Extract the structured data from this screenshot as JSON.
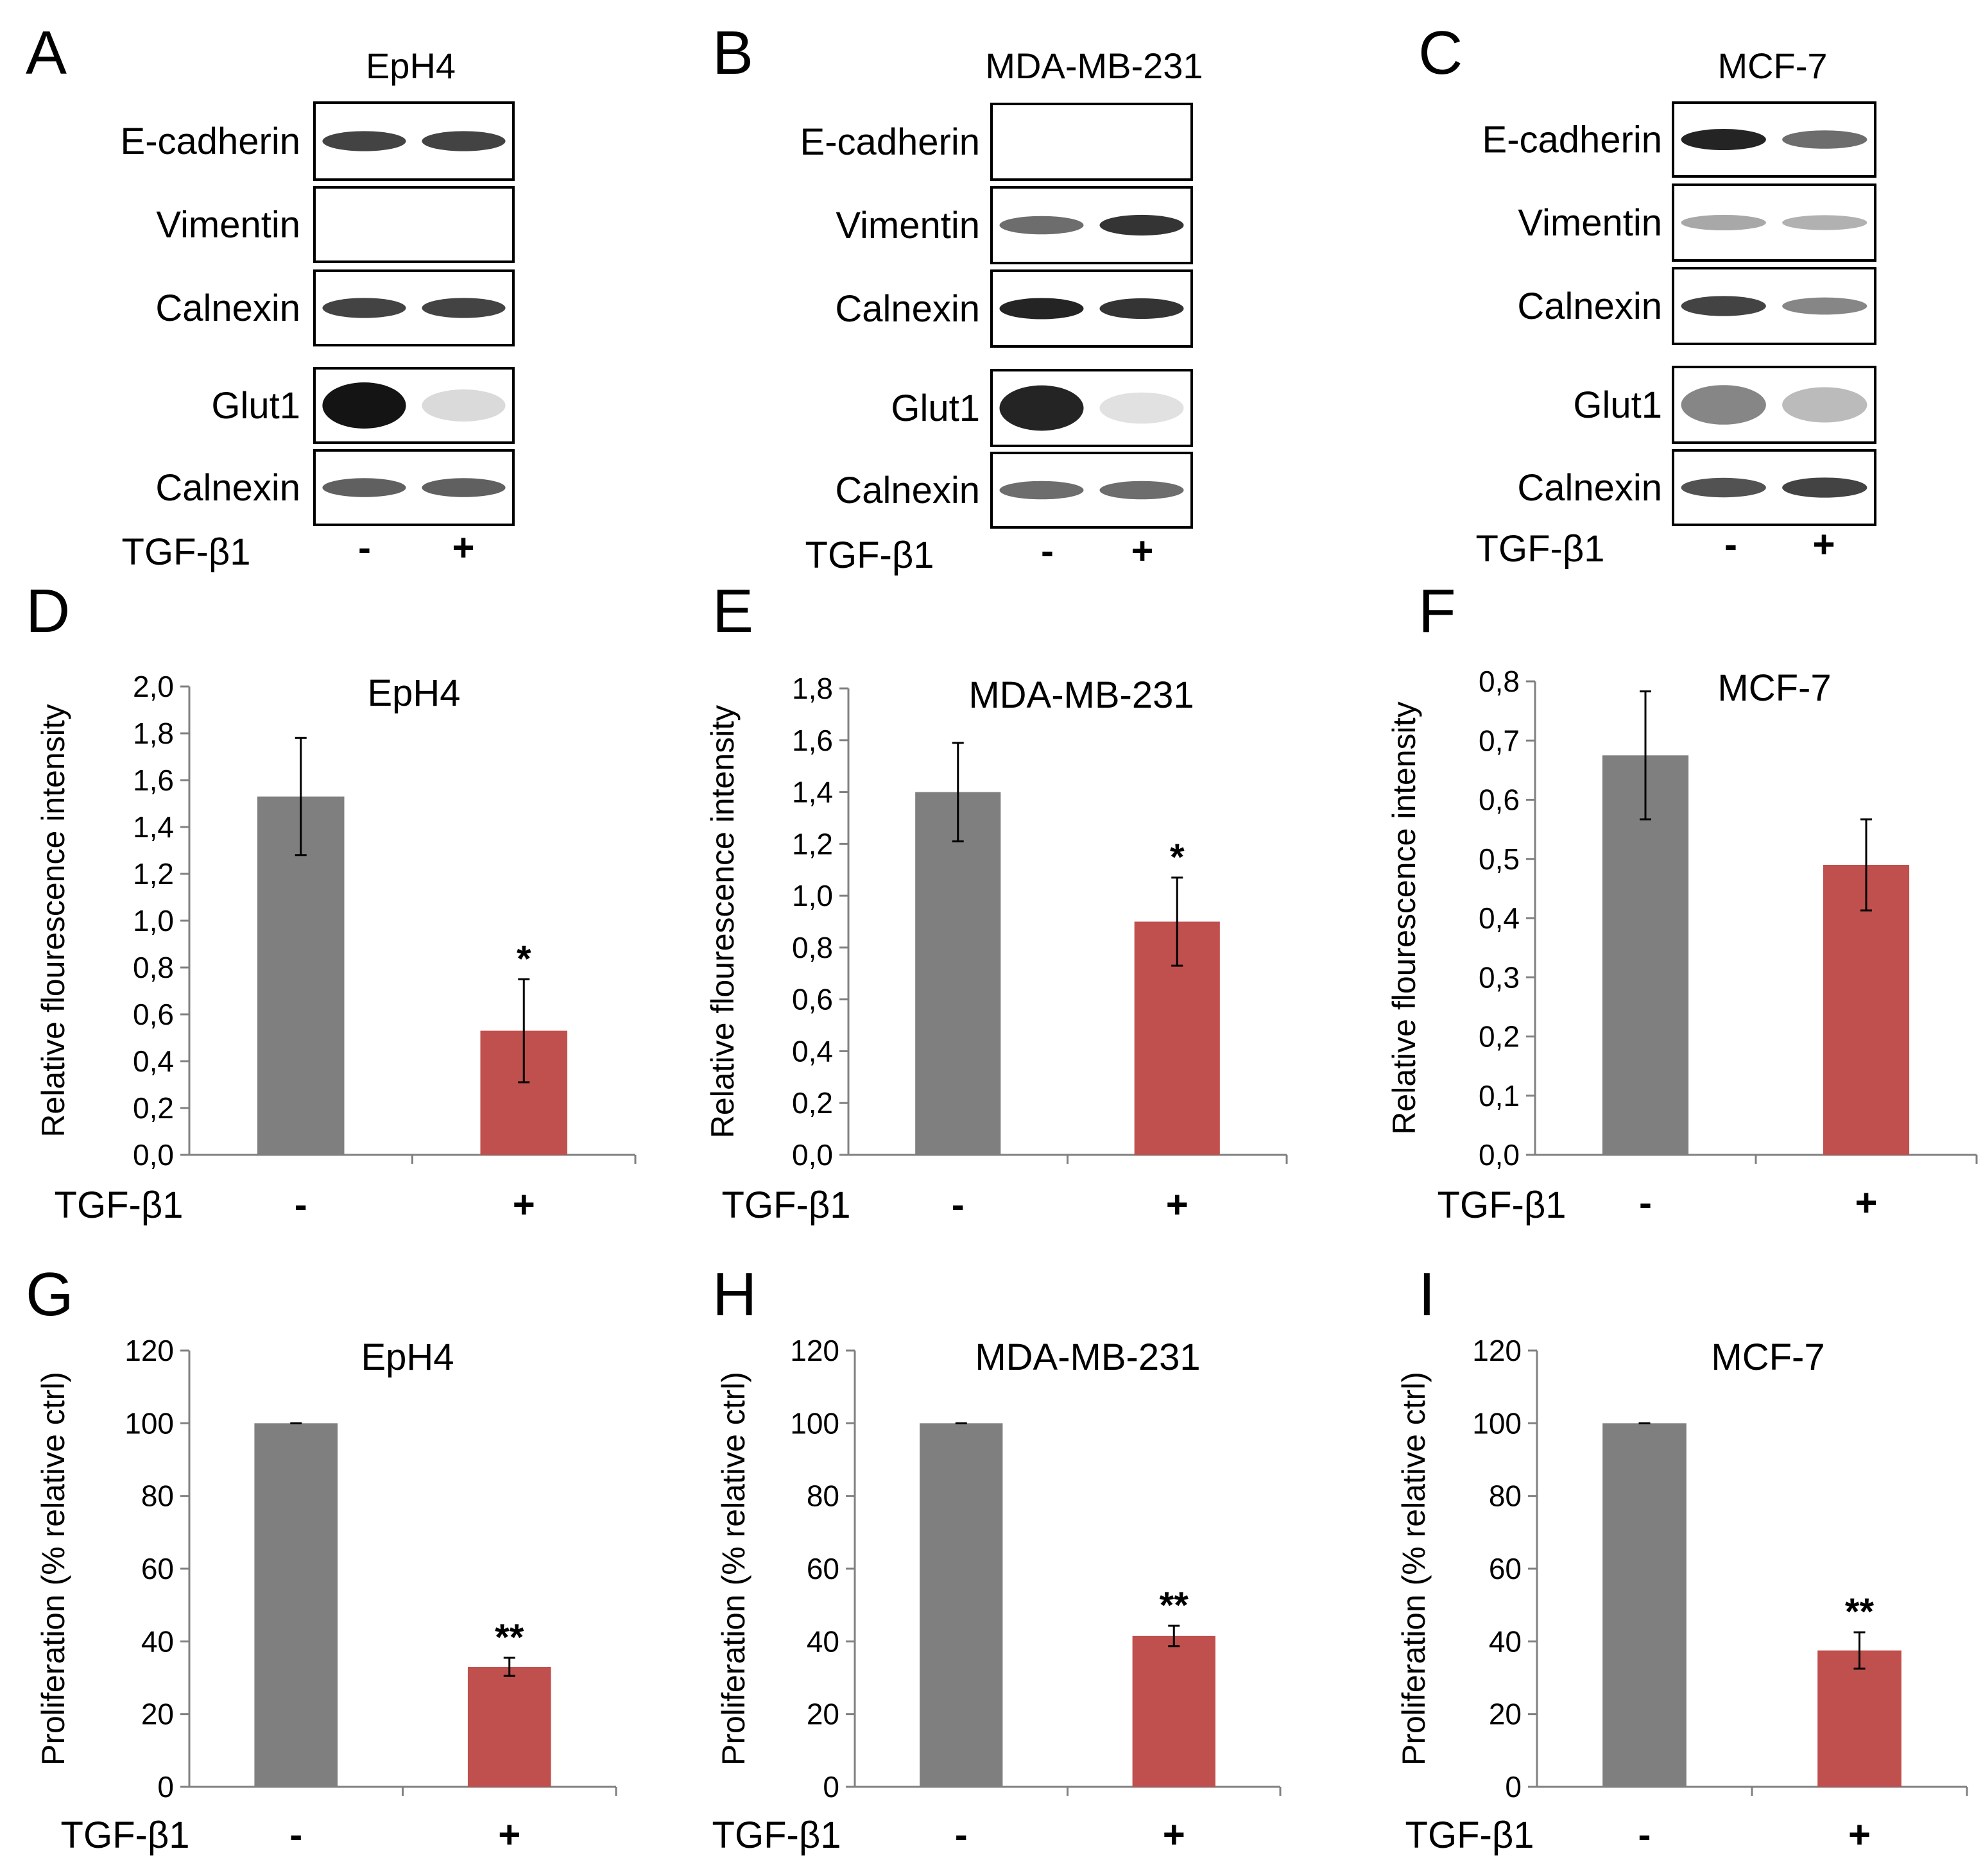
{
  "figure": {
    "colors": {
      "control": "#7f7f7f",
      "treated": "#c0504d",
      "text": "#000000"
    },
    "treatment_label": "TGF-β1",
    "conditions": [
      "-",
      "+"
    ],
    "blot_panels": [
      {
        "letter": "A",
        "cell_line": "EpH4",
        "strips": [
          {
            "protein": "E-cadherin",
            "band_intensity": [
              0.85,
              0.85
            ]
          },
          {
            "protein": "Vimentin",
            "band_intensity": [
              0,
              0
            ]
          },
          {
            "protein": "Calnexin",
            "band_intensity": [
              0.85,
              0.85
            ]
          },
          {
            "protein": "Glut1",
            "band_intensity": [
              1.0,
              0.15
            ]
          },
          {
            "protein": "Calnexin",
            "band_intensity": [
              0.75,
              0.75
            ]
          }
        ]
      },
      {
        "letter": "B",
        "cell_line": "MDA-MB-231",
        "strips": [
          {
            "protein": "E-cadherin",
            "band_intensity": [
              0,
              0
            ]
          },
          {
            "protein": "Vimentin",
            "band_intensity": [
              0.7,
              0.9
            ]
          },
          {
            "protein": "Calnexin",
            "band_intensity": [
              0.95,
              0.9
            ]
          },
          {
            "protein": "Glut1",
            "band_intensity": [
              0.95,
              0.1
            ]
          },
          {
            "protein": "Calnexin",
            "band_intensity": [
              0.7,
              0.7
            ]
          }
        ]
      },
      {
        "letter": "C",
        "cell_line": "MCF-7",
        "strips": [
          {
            "protein": "E-cadherin",
            "band_intensity": [
              0.95,
              0.7
            ]
          },
          {
            "protein": "Vimentin",
            "band_intensity": [
              0.45,
              0.4
            ]
          },
          {
            "protein": "Calnexin",
            "band_intensity": [
              0.85,
              0.6
            ]
          },
          {
            "protein": "Glut1",
            "band_intensity": [
              0.6,
              0.35
            ]
          },
          {
            "protein": "Calnexin",
            "band_intensity": [
              0.8,
              0.85
            ]
          }
        ]
      }
    ]
  },
  "chart_data": [
    {
      "letter": "D",
      "type": "bar",
      "title": "EpH4",
      "ylabel": "Relative flourescence intensity",
      "categories": [
        "-",
        "+"
      ],
      "values": [
        1.53,
        0.53
      ],
      "errors": [
        0.25,
        0.22
      ],
      "significance": [
        "",
        "*"
      ],
      "ylim": [
        0,
        2.0
      ],
      "step": 0.2,
      "decimals": 1,
      "tick_labels": [
        "0,0",
        "0,2",
        "0,4",
        "0,6",
        "0,8",
        "1,0",
        "1,2",
        "1,4",
        "1,6",
        "1,8",
        "2,0"
      ]
    },
    {
      "letter": "E",
      "type": "bar",
      "title": "MDA-MB-231",
      "ylabel": "Relative flourescence intensity",
      "categories": [
        "-",
        "+"
      ],
      "values": [
        1.4,
        0.9
      ],
      "errors": [
        0.19,
        0.17
      ],
      "significance": [
        "",
        "*"
      ],
      "ylim": [
        0,
        1.8
      ],
      "step": 0.2,
      "decimals": 1,
      "tick_labels": [
        "0,0",
        "0,2",
        "0,4",
        "0,6",
        "0,8",
        "1,0",
        "1,2",
        "1,4",
        "1,6",
        "1,8"
      ]
    },
    {
      "letter": "F",
      "type": "bar",
      "title": "MCF-7",
      "ylabel": "Relative flourescence intensity",
      "categories": [
        "-",
        "+"
      ],
      "values": [
        0.675,
        0.49
      ],
      "errors": [
        0.108,
        0.077
      ],
      "significance": [
        "",
        ""
      ],
      "ylim": [
        0,
        0.8
      ],
      "step": 0.1,
      "decimals": 1,
      "tick_labels": [
        "0,0",
        "0,1",
        "0,2",
        "0,3",
        "0,4",
        "0,5",
        "0,6",
        "0,7",
        "0,8"
      ]
    },
    {
      "letter": "G",
      "type": "bar",
      "title": "EpH4",
      "ylabel": "Proliferation (% relative ctrl)",
      "categories": [
        "-",
        "+"
      ],
      "values": [
        100,
        33
      ],
      "errors": [
        0,
        2.5
      ],
      "significance": [
        "",
        "**"
      ],
      "ylim": [
        0,
        120
      ],
      "step": 20,
      "decimals": 0,
      "tick_labels": [
        "0",
        "20",
        "40",
        "60",
        "80",
        "100",
        "120"
      ]
    },
    {
      "letter": "H",
      "type": "bar",
      "title": "MDA-MB-231",
      "ylabel": "Proliferation (% relative ctrl)",
      "categories": [
        "-",
        "+"
      ],
      "values": [
        100,
        41.5
      ],
      "errors": [
        0,
        2.8
      ],
      "significance": [
        "",
        "**"
      ],
      "ylim": [
        0,
        120
      ],
      "step": 20,
      "decimals": 0,
      "tick_labels": [
        "0",
        "20",
        "40",
        "60",
        "80",
        "100",
        "120"
      ]
    },
    {
      "letter": "I",
      "type": "bar",
      "title": "MCF-7",
      "ylabel": "Proliferation (% relative ctrl)",
      "categories": [
        "-",
        "+"
      ],
      "values": [
        100,
        37.5
      ],
      "errors": [
        0,
        5
      ],
      "significance": [
        "",
        "**"
      ],
      "ylim": [
        0,
        120
      ],
      "step": 20,
      "decimals": 0,
      "tick_labels": [
        "0",
        "20",
        "40",
        "60",
        "80",
        "100",
        "120"
      ]
    }
  ]
}
